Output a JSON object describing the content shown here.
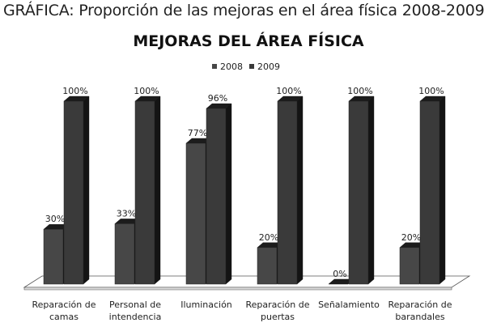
{
  "caption": "GRÁFICA: Proporción de las mejoras en el área física 2008-2009",
  "chart_data": {
    "type": "bar",
    "title": "MEJORAS DEL ÁREA FÍSICA",
    "categories": [
      [
        "Reparación de",
        "camas"
      ],
      [
        "Personal de",
        "intendencia"
      ],
      [
        "Iluminación"
      ],
      [
        "Reparación de",
        "puertas"
      ],
      [
        "Señalamiento"
      ],
      [
        "Reparación de",
        "barandales"
      ]
    ],
    "series": [
      {
        "name": "2008",
        "values": [
          30,
          33,
          77,
          20,
          0,
          20
        ],
        "labels": [
          "30%",
          "33%",
          "77%",
          "20%",
          "0%",
          "20%"
        ],
        "color": "#474747"
      },
      {
        "name": "2009",
        "values": [
          100,
          100,
          96,
          100,
          100,
          100
        ],
        "labels": [
          "100%",
          "100%",
          "96%",
          "100%",
          "100%",
          "100%"
        ],
        "color": "#3a3a3a"
      }
    ],
    "ylim": [
      0,
      100
    ],
    "legend_position": "top-center",
    "grid": false,
    "style": "3d"
  }
}
